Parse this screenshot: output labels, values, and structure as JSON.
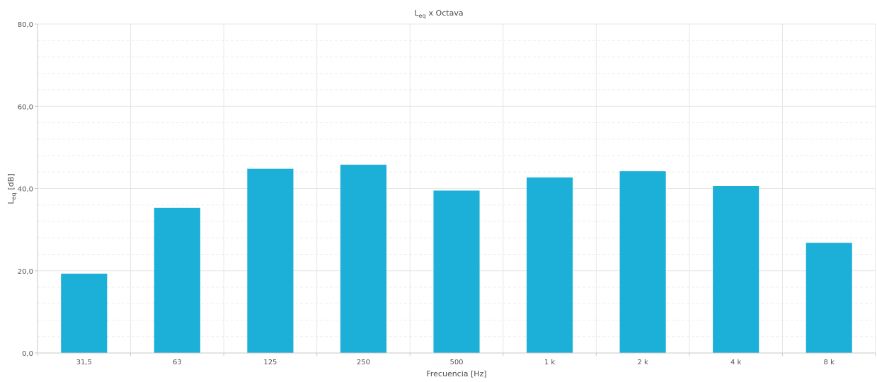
{
  "chart_data": {
    "type": "bar",
    "title": "x Octava",
    "title_symbol": {
      "main": "L",
      "sub": "eq"
    },
    "xlabel": "Frecuencia [Hz]",
    "ylabel": "[dB]",
    "ylabel_symbol": {
      "main": "L",
      "sub": "eq"
    },
    "categories": [
      "31,5",
      "63",
      "125",
      "250",
      "500",
      "1 k",
      "2 k",
      "4 k",
      "8 k"
    ],
    "values": [
      19.3,
      35.3,
      44.8,
      45.8,
      39.5,
      42.7,
      44.2,
      40.6,
      26.8
    ],
    "ylim": [
      0,
      80
    ],
    "yticks": [
      "0,0",
      "20,0",
      "40,0",
      "60,0",
      "80,0"
    ],
    "ytick_values": [
      0,
      20,
      40,
      60,
      80
    ],
    "minor_grid_step": 4,
    "grid": true,
    "bar_color": "#1CAFD7",
    "grid_color": "#E6E6E6",
    "minor_grid_color": "#EDEDED",
    "axis_color": "#C8C8C8"
  }
}
